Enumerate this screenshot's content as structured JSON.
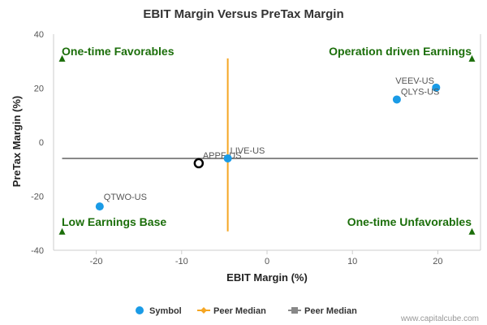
{
  "chart_data": {
    "type": "scatter",
    "title": "EBIT Margin Versus PreTax Margin",
    "xlabel": "EBIT Margin (%)",
    "ylabel": "PreTax Margin (%)",
    "xlim": [
      -25,
      25
    ],
    "ylim": [
      -40,
      40
    ],
    "xticks": [
      -20,
      -10,
      0,
      10,
      20
    ],
    "yticks": [
      -40,
      -20,
      0,
      20,
      40
    ],
    "grid": false,
    "legend_position": "bottom",
    "quadrant_labels": {
      "top_left": "One-time Favorables",
      "top_right": "Operation driven Earnings",
      "bottom_left": "Low Earnings Base",
      "bottom_right": "One-time Unfavorables"
    },
    "series": [
      {
        "name": "Symbol",
        "color": "#1a9be6",
        "points": [
          {
            "label": "VEEV-US",
            "x": 19.8,
            "y": 20.2
          },
          {
            "label": "QLYS-US",
            "x": 15.2,
            "y": 15.8
          },
          {
            "label": "LIVE-US",
            "x": -4.6,
            "y": -6.0
          },
          {
            "label": "QTWO-US",
            "x": -19.6,
            "y": -23.8
          }
        ]
      }
    ],
    "highlight": {
      "label": "APPF-US",
      "x": -8.0,
      "y": -7.8
    },
    "peer_median": {
      "x": -4.6,
      "y": -6.0,
      "vertical_range": [
        -33,
        31
      ],
      "vertical_color": "#f5a623",
      "horizontal_color": "#888888"
    },
    "legend": [
      {
        "name": "Symbol",
        "marker": "circle",
        "color": "#1a9be6"
      },
      {
        "name": "Peer Median",
        "marker": "diamond-line",
        "color": "#f5a623"
      },
      {
        "name": "Peer Median",
        "marker": "square-line",
        "color": "#888888"
      }
    ]
  },
  "credit": "www.capitalcube.com"
}
